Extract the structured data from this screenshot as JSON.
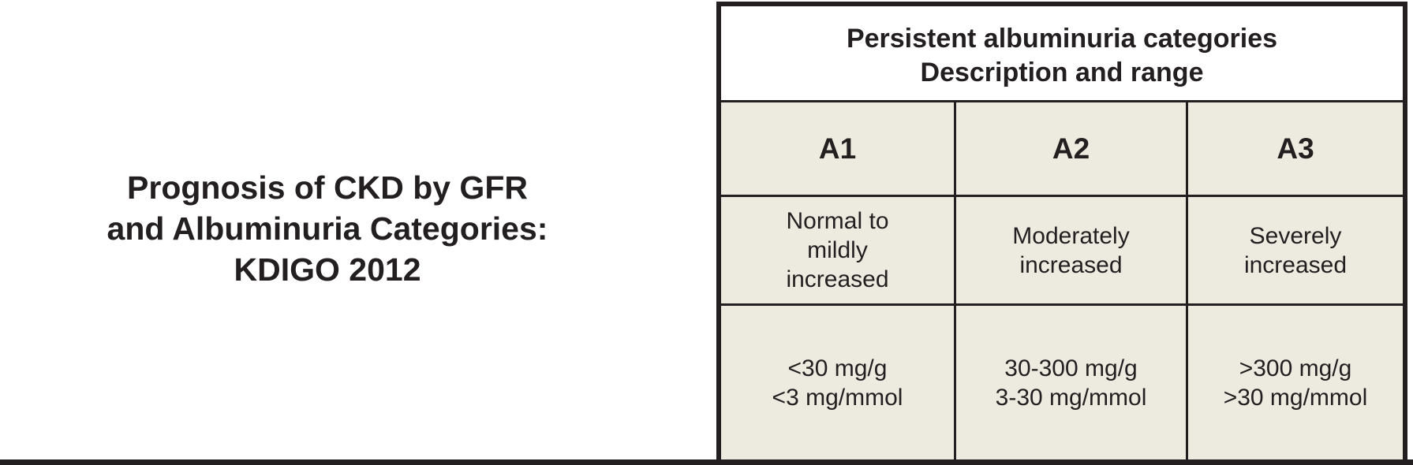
{
  "title": {
    "line1": "Prognosis of CKD by GFR",
    "line2": "and Albuminuria Categories:",
    "line3": "KDIGO 2012"
  },
  "header": {
    "line1": "Persistent albuminuria categories",
    "line2": "Description and range"
  },
  "categories": [
    {
      "code": "A1",
      "desc": [
        "Normal to",
        "mildly",
        "increased"
      ],
      "range": [
        "<30 mg/g",
        "<3 mg/mmol"
      ]
    },
    {
      "code": "A2",
      "desc": [
        "Moderately",
        "increased"
      ],
      "range": [
        "30-300 mg/g",
        "3-30 mg/mmol"
      ]
    },
    {
      "code": "A3",
      "desc": [
        "Severely",
        "increased"
      ],
      "range": [
        ">300 mg/g",
        ">30 mg/mmol"
      ]
    }
  ],
  "colors": {
    "cell_background": "#edeae0",
    "rule": "#231f20"
  }
}
